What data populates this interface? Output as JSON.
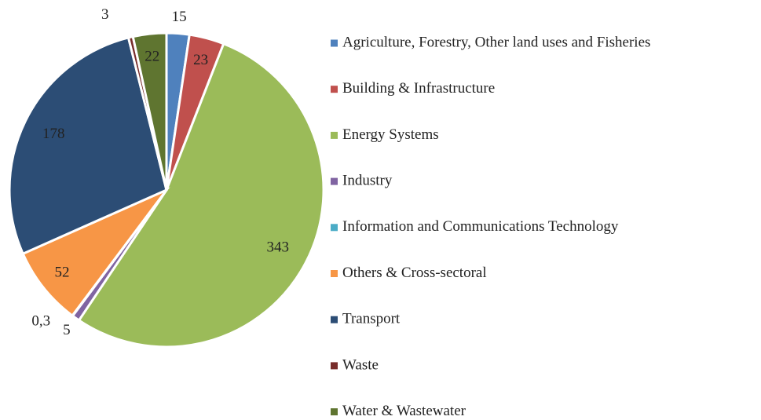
{
  "chart_data": {
    "type": "pie",
    "categories": [
      "Agriculture, Forestry, Other land uses and Fisheries",
      "Building & Infrastructure",
      "Energy Systems",
      "Industry",
      "Information and Communications Technology",
      "Others & Cross-sectoral",
      "Transport",
      "Waste",
      "Water & Wastewater"
    ],
    "values": [
      15,
      23,
      343,
      5,
      0.3,
      52,
      178,
      3,
      22
    ],
    "value_labels": [
      "15",
      "23",
      "343",
      "5",
      "0,3",
      "52",
      "178",
      "3",
      "22"
    ],
    "colors": [
      "#4f81bd",
      "#c0504d",
      "#9bbb59",
      "#8064a2",
      "#4bacc6",
      "#f79646",
      "#2c4d75",
      "#772c2a",
      "#5f7530"
    ],
    "legend": "right"
  }
}
